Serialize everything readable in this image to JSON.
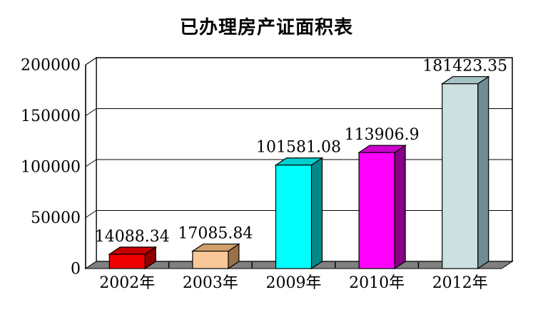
{
  "title": "已办理房产证面积表",
  "chart_data": {
    "type": "bar",
    "style": "3d-column",
    "title": "已办理房产证面积表",
    "xlabel": "",
    "ylabel": "",
    "categories": [
      "2002年",
      "2003年",
      "2009年",
      "2010年",
      "2012年"
    ],
    "values": [
      14088.34,
      17085.84,
      101581.08,
      113906.9,
      181423.35
    ],
    "data_labels": [
      "14088.34",
      "17085.84",
      "101581.08",
      "113906.9",
      "181423.35"
    ],
    "ylim": [
      0,
      200000
    ],
    "ytick_interval": 50000,
    "ytick_labels": [
      "0",
      "50000",
      "100000",
      "150000",
      "200000"
    ],
    "grid": true,
    "legend": false,
    "colors": {
      "bars": [
        {
          "front": "#EE0000",
          "top": "#C80000",
          "side": "#8E0000"
        },
        {
          "front": "#F8C898",
          "top": "#CFA06C",
          "side": "#9A7048"
        },
        {
          "front": "#00FFFF",
          "top": "#00CFCF",
          "side": "#008888"
        },
        {
          "front": "#FF00FF",
          "top": "#CC00CC",
          "side": "#850085"
        },
        {
          "front": "#CCE0E0",
          "top": "#A6C2C5",
          "side": "#6F8D93"
        }
      ],
      "floor": "#808080",
      "wall": "#FFFFFF",
      "line": "#000000"
    }
  }
}
